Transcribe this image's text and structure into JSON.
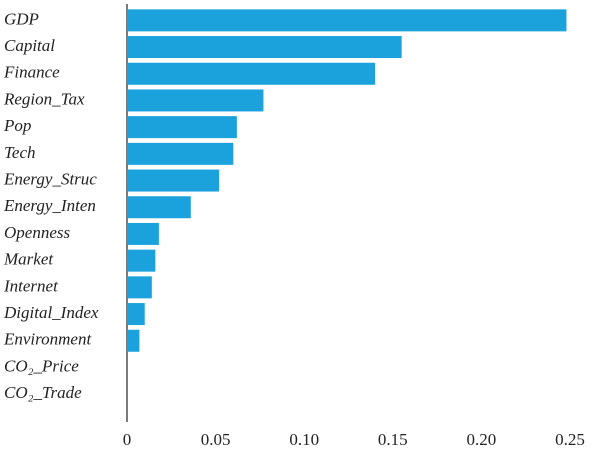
{
  "chart_data": {
    "type": "bar",
    "orientation": "horizontal",
    "categories": [
      "GDP",
      "Capital",
      "Finance",
      "Region_Tax",
      "Pop",
      "Tech",
      "Energy_Struc",
      "Energy_Inten",
      "Openness",
      "Market",
      "Internet",
      "Digital_Index",
      "Environment",
      "CO₂_Price",
      "CO₂_Trade"
    ],
    "values": [
      0.248,
      0.155,
      0.14,
      0.077,
      0.062,
      0.06,
      0.052,
      0.036,
      0.018,
      0.016,
      0.014,
      0.01,
      0.007,
      0,
      0
    ],
    "color": "#1ba1dc",
    "xlim": [
      0,
      0.25
    ],
    "xticks": [
      0,
      0.05,
      {
        "value": 0.1,
        "label": "0.10"
      },
      0.15,
      {
        "value": 0.2,
        "label": "0.20"
      },
      0.25
    ]
  }
}
